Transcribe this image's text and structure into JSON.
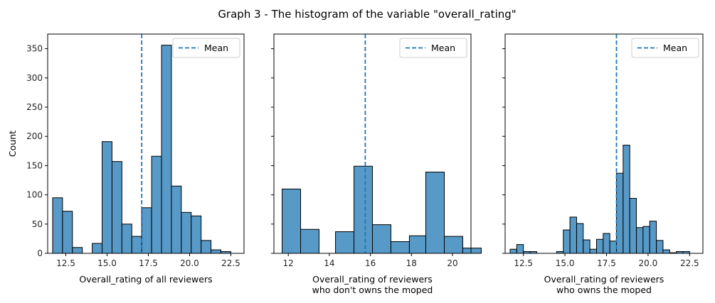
{
  "title": "Graph 3 - The histogram of the variable \"overall_rating\"",
  "colors": {
    "bar_fill": "#5799c7",
    "bar_edge": "#000000",
    "mean_line": "#1f77b4",
    "axis": "#000000"
  },
  "chart_data": [
    {
      "type": "bar",
      "subtype": "histogram",
      "xlabel": [
        "Overall_rating of all reviewers"
      ],
      "ylabel": "Count",
      "xlim": [
        11.4,
        23.3
      ],
      "ylim": [
        0,
        375
      ],
      "xticks": [
        12.5,
        15.0,
        17.5,
        20.0,
        22.5
      ],
      "xtick_labels": [
        "12.5",
        "15.0",
        "17.5",
        "20.0",
        "22.5"
      ],
      "yticks": [
        0,
        50,
        100,
        150,
        200,
        250,
        300,
        350
      ],
      "ytick_labels": [
        "0",
        "50",
        "100",
        "150",
        "200",
        "250",
        "300",
        "350"
      ],
      "show_ytick_labels": true,
      "mean": 17.1,
      "legend": {
        "label": "Mean",
        "position": "upper right"
      },
      "bins": [
        {
          "x0": 11.7,
          "x1": 12.3,
          "count": 95
        },
        {
          "x0": 12.3,
          "x1": 12.9,
          "count": 72
        },
        {
          "x0": 12.9,
          "x1": 13.5,
          "count": 10
        },
        {
          "x0": 13.5,
          "x1": 14.1,
          "count": 0
        },
        {
          "x0": 14.1,
          "x1": 14.7,
          "count": 17
        },
        {
          "x0": 14.7,
          "x1": 15.3,
          "count": 191
        },
        {
          "x0": 15.3,
          "x1": 15.9,
          "count": 157
        },
        {
          "x0": 15.9,
          "x1": 16.5,
          "count": 50
        },
        {
          "x0": 16.5,
          "x1": 17.1,
          "count": 29
        },
        {
          "x0": 17.1,
          "x1": 17.7,
          "count": 78
        },
        {
          "x0": 17.7,
          "x1": 18.3,
          "count": 166
        },
        {
          "x0": 18.3,
          "x1": 18.9,
          "count": 356
        },
        {
          "x0": 18.9,
          "x1": 19.5,
          "count": 115
        },
        {
          "x0": 19.5,
          "x1": 20.1,
          "count": 70
        },
        {
          "x0": 20.1,
          "x1": 20.7,
          "count": 64
        },
        {
          "x0": 20.7,
          "x1": 21.3,
          "count": 22
        },
        {
          "x0": 21.3,
          "x1": 21.9,
          "count": 6
        },
        {
          "x0": 21.9,
          "x1": 22.5,
          "count": 3
        }
      ]
    },
    {
      "type": "bar",
      "subtype": "histogram",
      "xlabel": [
        "Overall_rating of reviewers",
        "who don't owns the moped"
      ],
      "ylabel": "",
      "xlim": [
        11.3,
        20.9
      ],
      "ylim": [
        0,
        375
      ],
      "xticks": [
        12,
        14,
        16,
        18,
        20
      ],
      "xtick_labels": [
        "12",
        "14",
        "16",
        "18",
        "20"
      ],
      "yticks": [
        0,
        50,
        100,
        150,
        200,
        250,
        300,
        350
      ],
      "ytick_labels": [],
      "show_ytick_labels": false,
      "mean": 15.75,
      "legend": {
        "label": "Mean",
        "position": "upper right"
      },
      "bins": [
        {
          "x0": 11.7,
          "x1": 12.6,
          "count": 110
        },
        {
          "x0": 12.6,
          "x1": 13.5,
          "count": 41
        },
        {
          "x0": 13.5,
          "x1": 14.3,
          "count": 0
        },
        {
          "x0": 14.3,
          "x1": 15.2,
          "count": 37
        },
        {
          "x0": 15.2,
          "x1": 16.1,
          "count": 149
        },
        {
          "x0": 16.1,
          "x1": 17.0,
          "count": 49
        },
        {
          "x0": 17.0,
          "x1": 17.9,
          "count": 20
        },
        {
          "x0": 17.9,
          "x1": 18.7,
          "count": 30
        },
        {
          "x0": 18.7,
          "x1": 19.6,
          "count": 139
        },
        {
          "x0": 19.6,
          "x1": 20.5,
          "count": 29
        },
        {
          "x0": 20.5,
          "x1": 21.4,
          "count": 9
        }
      ]
    },
    {
      "type": "bar",
      "subtype": "histogram",
      "xlabel": [
        "Overall_rating of reviewers",
        "who owns the moped"
      ],
      "ylabel": "",
      "xlim": [
        11.4,
        23.3
      ],
      "ylim": [
        0,
        375
      ],
      "xticks": [
        12.5,
        15.0,
        17.5,
        20.0,
        22.5
      ],
      "xtick_labels": [
        "12.5",
        "15.0",
        "17.5",
        "20.0",
        "22.5"
      ],
      "yticks": [
        0,
        50,
        100,
        150,
        200,
        250,
        300,
        350
      ],
      "ytick_labels": [],
      "show_ytick_labels": false,
      "mean": 18.1,
      "legend": {
        "label": "Mean",
        "position": "upper right"
      },
      "bins": [
        {
          "x0": 11.7,
          "x1": 12.1,
          "count": 7
        },
        {
          "x0": 12.1,
          "x1": 12.5,
          "count": 15
        },
        {
          "x0": 12.5,
          "x1": 12.9,
          "count": 3
        },
        {
          "x0": 12.9,
          "x1": 13.3,
          "count": 3
        },
        {
          "x0": 13.3,
          "x1": 13.7,
          "count": 0
        },
        {
          "x0": 13.7,
          "x1": 14.1,
          "count": 0
        },
        {
          "x0": 14.1,
          "x1": 14.5,
          "count": 0
        },
        {
          "x0": 14.5,
          "x1": 14.9,
          "count": 3
        },
        {
          "x0": 14.9,
          "x1": 15.3,
          "count": 40
        },
        {
          "x0": 15.3,
          "x1": 15.7,
          "count": 62
        },
        {
          "x0": 15.7,
          "x1": 16.1,
          "count": 51
        },
        {
          "x0": 16.1,
          "x1": 16.5,
          "count": 23
        },
        {
          "x0": 16.5,
          "x1": 16.9,
          "count": 7
        },
        {
          "x0": 16.9,
          "x1": 17.3,
          "count": 24
        },
        {
          "x0": 17.3,
          "x1": 17.7,
          "count": 34
        },
        {
          "x0": 17.7,
          "x1": 18.1,
          "count": 21
        },
        {
          "x0": 18.1,
          "x1": 18.5,
          "count": 137
        },
        {
          "x0": 18.5,
          "x1": 18.9,
          "count": 185
        },
        {
          "x0": 18.9,
          "x1": 19.3,
          "count": 94
        },
        {
          "x0": 19.3,
          "x1": 19.7,
          "count": 44
        },
        {
          "x0": 19.7,
          "x1": 20.1,
          "count": 46
        },
        {
          "x0": 20.1,
          "x1": 20.5,
          "count": 55
        },
        {
          "x0": 20.5,
          "x1": 20.9,
          "count": 22
        },
        {
          "x0": 20.9,
          "x1": 21.3,
          "count": 6
        },
        {
          "x0": 21.3,
          "x1": 21.7,
          "count": 1
        },
        {
          "x0": 21.7,
          "x1": 22.1,
          "count": 3
        },
        {
          "x0": 22.1,
          "x1": 22.5,
          "count": 3
        }
      ]
    }
  ]
}
